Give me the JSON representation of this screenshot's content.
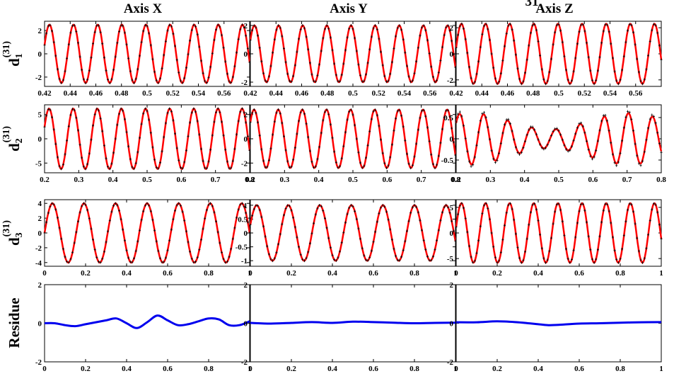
{
  "columns": [
    "Axis X",
    "Axis Y",
    "Axis Z"
  ],
  "stray_label": "31",
  "row_labels": [
    {
      "base": "d",
      "sup": "(31)",
      "sub": "1"
    },
    {
      "base": "d",
      "sup": "(31)",
      "sub": "2"
    },
    {
      "base": "d",
      "sup": "(31)",
      "sub": "3"
    },
    {
      "base": "Residue"
    }
  ],
  "colors": {
    "fit": "#ff0000",
    "measured": "#000000",
    "residue": "#0000ee"
  },
  "chart_data": [
    {
      "type": "line",
      "row": 0,
      "col": 0,
      "xlim": [
        0.42,
        0.58
      ],
      "ylim": [
        -2.8,
        2.8
      ],
      "xticks": [
        "0.42",
        "0.44",
        "0.46",
        "0.48",
        "0.5",
        "0.52",
        "0.54",
        "0.56"
      ],
      "yticks": [
        "2",
        "0",
        "-2"
      ],
      "series": [
        {
          "amplitude": 2.5,
          "cycles": 8.5,
          "phase": 0.3
        }
      ]
    },
    {
      "type": "line",
      "row": 0,
      "col": 1,
      "xlim": [
        0.42,
        0.58
      ],
      "ylim": [
        -2.3,
        2.3
      ],
      "xticks": [
        "0.42",
        "0.44",
        "0.46",
        "0.48",
        "0.5",
        "0.52",
        "0.54",
        "0.56"
      ],
      "yticks": [
        "2",
        "0",
        "-2"
      ],
      "series": [
        {
          "amplitude": 2.0,
          "cycles": 8.5,
          "phase": 0.5
        }
      ]
    },
    {
      "type": "line",
      "row": 0,
      "col": 2,
      "xlim": [
        0.42,
        0.58
      ],
      "ylim": [
        -2.5,
        2.5
      ],
      "xticks": [
        "0.42",
        "0.44",
        "0.46",
        "0.48",
        "0.5",
        "0.52",
        "0.54",
        "0.56"
      ],
      "yticks": [
        "2",
        "0",
        "-2"
      ],
      "series": [
        {
          "amplitude": 2.3,
          "cycles": 8.5,
          "phase": 0.2
        }
      ]
    },
    {
      "type": "line",
      "row": 1,
      "col": 0,
      "xlim": [
        0.2,
        0.8
      ],
      "ylim": [
        -7,
        7
      ],
      "xticks": [
        "0.2",
        "0.3",
        "0.4",
        "0.5",
        "0.6",
        "0.7",
        "0.8"
      ],
      "yticks": [
        "5",
        "0",
        "-5"
      ],
      "series": [
        {
          "amplitude": 6.2,
          "cycles": 8.5,
          "phase": 0.4
        }
      ]
    },
    {
      "type": "line",
      "row": 1,
      "col": 1,
      "xlim": [
        0.2,
        0.8
      ],
      "ylim": [
        -2.8,
        2.8
      ],
      "xticks": [
        "0.2",
        "0.3",
        "0.4",
        "0.5",
        "0.6",
        "0.7",
        "0.8"
      ],
      "yticks": [
        "2",
        "0",
        "-2"
      ],
      "series": [
        {
          "amplitude": 2.4,
          "cycles": 8.5,
          "phase": 0.6
        }
      ]
    },
    {
      "type": "line",
      "row": 1,
      "col": 2,
      "xlim": [
        0.2,
        0.8
      ],
      "ylim": [
        -0.8,
        0.8
      ],
      "xticks": [
        "0.2",
        "0.3",
        "0.4",
        "0.5",
        "0.6",
        "0.7",
        "0.8"
      ],
      "yticks": [
        "0.5",
        "0",
        "-0.5"
      ],
      "series": [
        {
          "amplitude": 0.55,
          "cycles": 8.5,
          "phase": 0.7,
          "modulated": true
        }
      ]
    },
    {
      "type": "line",
      "row": 2,
      "col": 0,
      "xlim": [
        0,
        1
      ],
      "ylim": [
        -4.5,
        4.5
      ],
      "xticks": [
        "0",
        "0.2",
        "0.4",
        "0.6",
        "0.8",
        "1"
      ],
      "yticks": [
        "4",
        "2",
        "0",
        "-2",
        "-4"
      ],
      "series": [
        {
          "amplitude": 4.0,
          "cycles": 6.5,
          "phase": 0.0
        }
      ]
    },
    {
      "type": "line",
      "row": 2,
      "col": 1,
      "xlim": [
        0,
        1
      ],
      "ylim": [
        -1.2,
        1.2
      ],
      "xticks": [
        "0",
        "0.2",
        "0.4",
        "0.6",
        "0.8",
        "1"
      ],
      "yticks": [
        "1",
        "0.5",
        "0",
        "-0.5",
        "-1"
      ],
      "series": [
        {
          "amplitude": 1.0,
          "cycles": 6.5,
          "phase": 0.3
        }
      ]
    },
    {
      "type": "line",
      "row": 2,
      "col": 2,
      "xlim": [
        0,
        1
      ],
      "ylim": [
        -6.5,
        6.5
      ],
      "xticks": [
        "0",
        "0.2",
        "0.4",
        "0.6",
        "0.8",
        "1"
      ],
      "yticks": [
        "5",
        "0",
        "-5"
      ],
      "series": [
        {
          "amplitude": 5.8,
          "cycles": 8.5,
          "phase": 0.2
        }
      ]
    },
    {
      "type": "line",
      "row": 3,
      "col": 0,
      "xlim": [
        0,
        1
      ],
      "ylim": [
        -2,
        2
      ],
      "xticks": [
        "0",
        "0.2",
        "0.4",
        "0.6",
        "0.8",
        "1"
      ],
      "yticks": [
        "2",
        "0",
        "-2"
      ],
      "series": [
        {
          "name": "",
          "x": [
            0,
            0.05,
            0.1,
            0.15,
            0.2,
            0.25,
            0.3,
            0.35,
            0.4,
            0.45,
            0.5,
            0.55,
            0.6,
            0.65,
            0.7,
            0.75,
            0.8,
            0.85,
            0.9,
            0.95,
            1
          ],
          "y": [
            0,
            0,
            -0.1,
            -0.15,
            -0.05,
            0.05,
            0.15,
            0.25,
            0.0,
            -0.25,
            0.05,
            0.4,
            0.15,
            -0.1,
            -0.05,
            0.1,
            0.25,
            0.2,
            -0.1,
            -0.1,
            0.1
          ]
        }
      ]
    },
    {
      "type": "line",
      "row": 3,
      "col": 1,
      "xlim": [
        0,
        1
      ],
      "ylim": [
        -2,
        2
      ],
      "xticks": [
        "0",
        "0.2",
        "0.4",
        "0.6",
        "0.8",
        "1"
      ],
      "yticks": [
        "2",
        "0",
        "-2"
      ],
      "series": [
        {
          "name": "",
          "x": [
            0,
            0.1,
            0.2,
            0.3,
            0.4,
            0.5,
            0.6,
            0.7,
            0.8,
            0.9,
            1
          ],
          "y": [
            0.02,
            -0.02,
            0.02,
            0.06,
            0.02,
            0.08,
            0.06,
            0.03,
            0.0,
            0.02,
            0.03
          ]
        }
      ]
    },
    {
      "type": "line",
      "row": 3,
      "col": 2,
      "xlim": [
        0,
        1
      ],
      "ylim": [
        -2,
        2
      ],
      "xticks": [
        "0",
        "0.2",
        "0.4",
        "0.6",
        "0.8",
        "1"
      ],
      "yticks": [
        "2",
        "0",
        "-2"
      ],
      "series": [
        {
          "name": "",
          "x": [
            0,
            0.1,
            0.2,
            0.3,
            0.4,
            0.45,
            0.5,
            0.6,
            0.7,
            0.8,
            0.9,
            1
          ],
          "y": [
            0.05,
            0.05,
            0.1,
            0.05,
            -0.05,
            -0.1,
            -0.08,
            -0.02,
            0.0,
            0.03,
            0.05,
            0.06
          ]
        }
      ]
    }
  ]
}
